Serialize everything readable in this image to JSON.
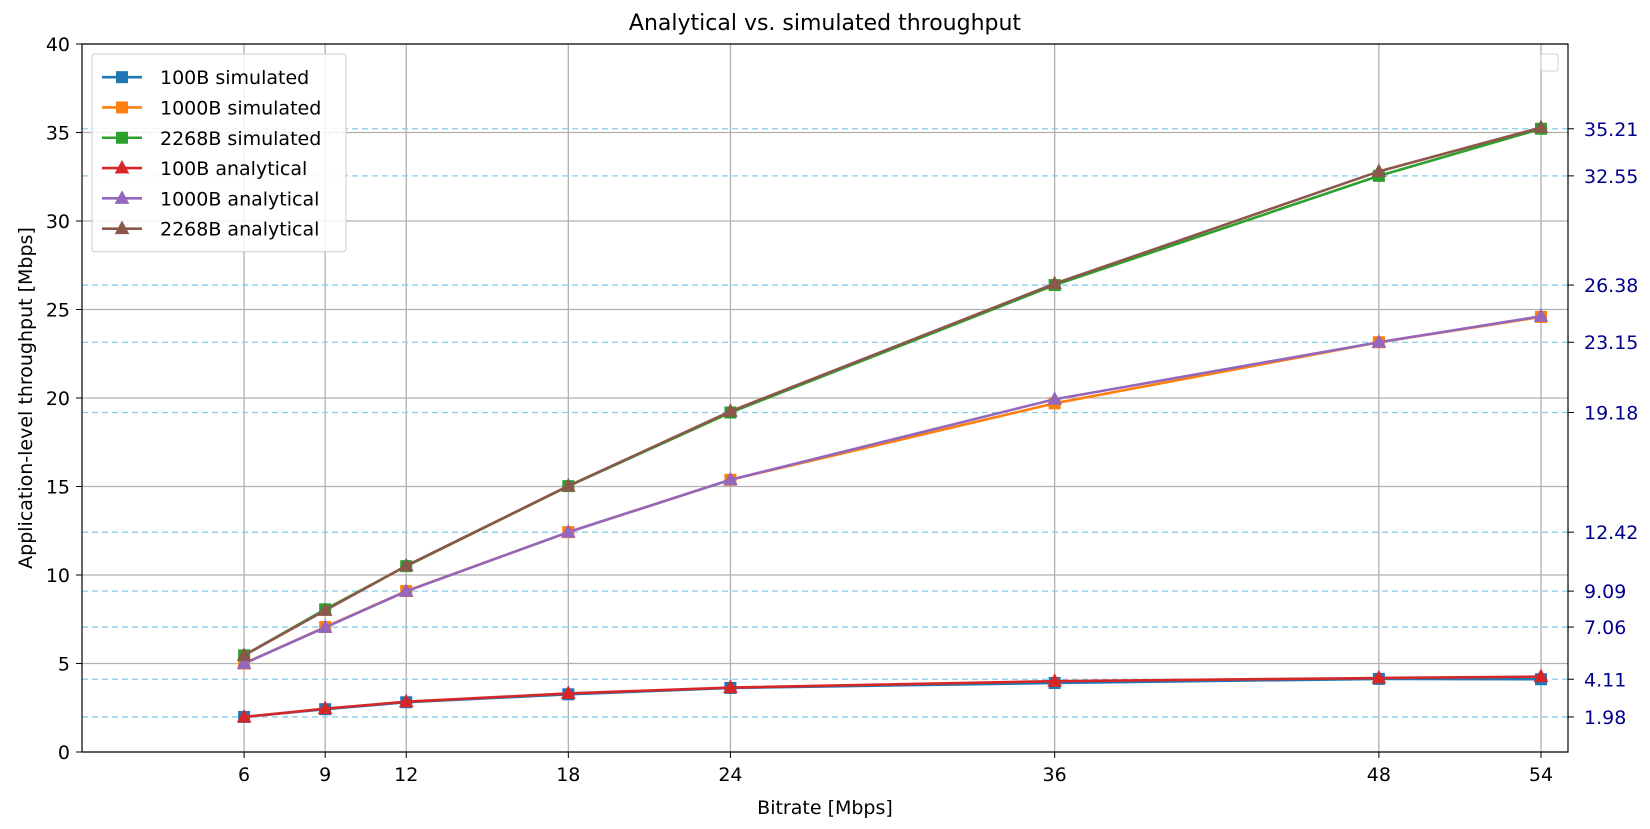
{
  "chart_data": {
    "type": "line",
    "title": "Analytical vs. simulated throughput",
    "xlabel": "Bitrate [Mbps]",
    "ylabel": "Application-level throughput [Mbps]",
    "x": [
      6,
      9,
      12,
      18,
      24,
      36,
      48,
      54
    ],
    "xlim": [
      0,
      55
    ],
    "ylim": [
      0,
      40
    ],
    "yticks": [
      0,
      5,
      10,
      15,
      20,
      25,
      30,
      35,
      40
    ],
    "grid": true,
    "legend_position": "upper-left",
    "series": [
      {
        "name": "100B simulated",
        "color": "#1f77b4",
        "marker": "square",
        "values": [
          1.98,
          2.42,
          2.81,
          3.26,
          3.62,
          3.9,
          4.13,
          4.11
        ]
      },
      {
        "name": "1000B simulated",
        "color": "#ff7f0e",
        "marker": "square",
        "values": [
          5.0,
          7.06,
          9.09,
          12.42,
          15.38,
          19.7,
          23.15,
          24.58
        ]
      },
      {
        "name": "2268B simulated",
        "color": "#2ca02c",
        "marker": "square",
        "values": [
          5.46,
          8.06,
          10.5,
          15.02,
          19.18,
          26.38,
          32.55,
          35.21
        ]
      },
      {
        "name": "100B analytical",
        "color": "#d62728",
        "marker": "triangle",
        "values": [
          1.98,
          2.45,
          2.84,
          3.31,
          3.64,
          4.0,
          4.18,
          4.26
        ]
      },
      {
        "name": "1000B analytical",
        "color": "#9467bd",
        "marker": "triangle",
        "values": [
          5.0,
          7.04,
          9.08,
          12.42,
          15.38,
          19.93,
          23.15,
          24.62
        ]
      },
      {
        "name": "2268B analytical",
        "color": "#8c564b",
        "marker": "triangle",
        "values": [
          5.46,
          8.0,
          10.52,
          15.03,
          19.25,
          26.46,
          32.8,
          35.28
        ]
      }
    ],
    "reference_lines": {
      "color": "#87ceeb",
      "label_color": "#00008b",
      "values": [
        1.98,
        4.11,
        7.06,
        9.09,
        12.42,
        19.18,
        23.15,
        26.38,
        32.55,
        35.21
      ],
      "labels": [
        "1.98",
        "4.11",
        "7.06",
        "9.09",
        "12.42",
        "19.18",
        "23.15",
        "26.38",
        "32.55",
        "35.21"
      ]
    }
  }
}
